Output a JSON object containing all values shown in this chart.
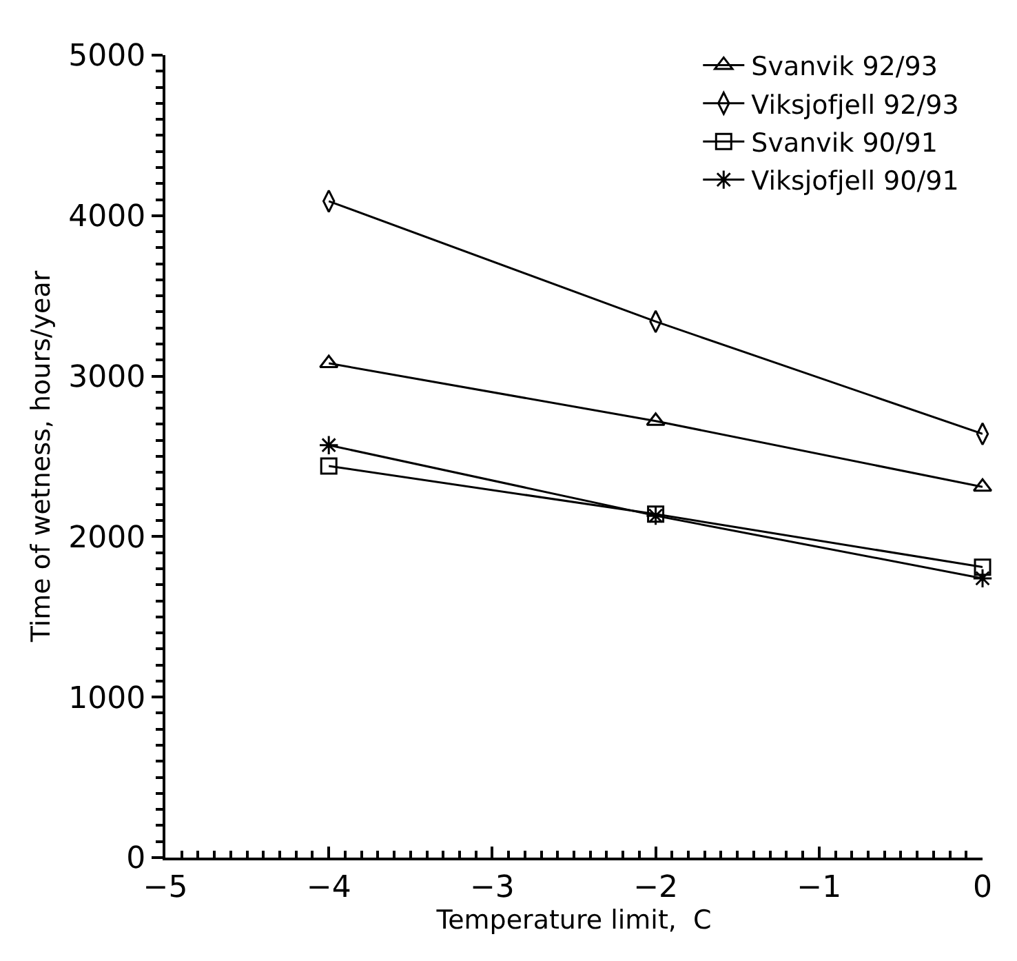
{
  "chart_data": {
    "type": "line",
    "xlabel": "Temperature limit,  C",
    "ylabel": "Time of wetness, hours/year",
    "x": [
      -4,
      -2,
      0
    ],
    "xlim": [
      -5,
      0
    ],
    "xticks": [
      {
        "value": -5,
        "label": "−5"
      },
      {
        "value": -4,
        "label": "−4"
      },
      {
        "value": -3,
        "label": "−3"
      },
      {
        "value": -2,
        "label": "−2"
      },
      {
        "value": -1,
        "label": "−1"
      },
      0
    ],
    "ylim": [
      0,
      5000
    ],
    "yticks": [
      0,
      1000,
      2000,
      3000,
      4000,
      5000
    ],
    "legend": "top right",
    "series": [
      {
        "name": "Svanvik 92/93",
        "color": "#000000",
        "marker": "triangle",
        "values": [
          3080,
          2720,
          2310
        ]
      },
      {
        "name": "Viksjofjell 92/93",
        "color": "#000000",
        "marker": "diamond",
        "values": [
          4090,
          3340,
          2640
        ]
      },
      {
        "name": "Svanvik 90/91",
        "color": "#000000",
        "marker": "square",
        "values": [
          2440,
          2140,
          1810
        ]
      },
      {
        "name": "Viksjofjell 90/91",
        "color": "#000000",
        "marker": "cross",
        "values": [
          2570,
          2130,
          1740
        ]
      }
    ]
  }
}
